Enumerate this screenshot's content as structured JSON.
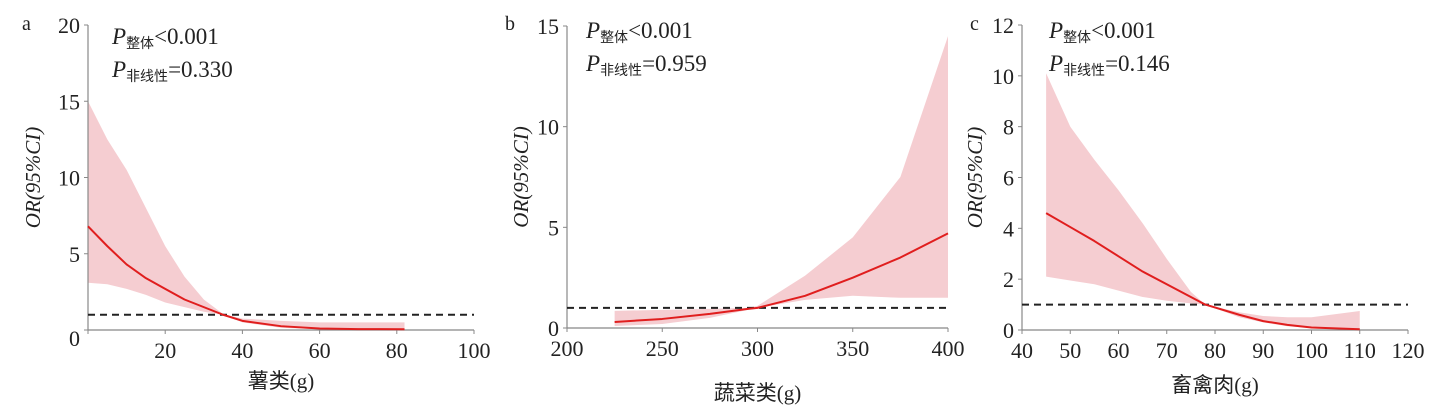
{
  "chart_data": [
    {
      "type": "line",
      "panel_label": "a",
      "xlabel": "薯类(g)",
      "ylabel": "OR(95%CI)",
      "xlim": [
        0,
        100
      ],
      "ylim": [
        0,
        20
      ],
      "xticks": [
        0,
        20,
        40,
        60,
        80,
        100
      ],
      "xtick_labels": [
        "",
        "20",
        "40",
        "60",
        "80",
        "100"
      ],
      "yticks": [
        0,
        5,
        10,
        15,
        20
      ],
      "ytick_labels": [
        "0",
        "5",
        "10",
        "15",
        "20"
      ],
      "reference_line": 1,
      "annotations": [
        {
          "p": "P",
          "sub": "整体",
          "value": "<0.001"
        },
        {
          "p": "P",
          "sub": "非线性",
          "value": "=0.330"
        }
      ],
      "x": [
        0,
        5,
        10,
        15,
        20,
        25,
        30,
        35,
        40,
        50,
        60,
        70,
        82
      ],
      "or": [
        6.8,
        5.5,
        4.3,
        3.4,
        2.7,
        2.0,
        1.5,
        1.0,
        0.6,
        0.25,
        0.1,
        0.06,
        0.05
      ],
      "upper": [
        15,
        12.5,
        10.5,
        8,
        5.5,
        3.5,
        2.0,
        1.05,
        0.75,
        0.6,
        0.5,
        0.5,
        0.5
      ],
      "lower": [
        3.1,
        3.0,
        2.7,
        2.3,
        1.8,
        1.5,
        1.2,
        1.0,
        0.5,
        0.15,
        0.05,
        0.02,
        0
      ]
    },
    {
      "type": "line",
      "panel_label": "b",
      "xlabel": "蔬菜类(g)",
      "ylabel": "OR(95%CI)",
      "xlim": [
        200,
        400
      ],
      "ylim": [
        0,
        15
      ],
      "xticks": [
        200,
        250,
        300,
        350,
        400
      ],
      "xtick_labels": [
        "200",
        "250",
        "300",
        "350",
        "400"
      ],
      "yticks": [
        0,
        5,
        10,
        15
      ],
      "ytick_labels": [
        "0",
        "5",
        "10",
        "15"
      ],
      "reference_line": 1,
      "annotations": [
        {
          "p": "P",
          "sub": "整体",
          "value": "<0.001"
        },
        {
          "p": "P",
          "sub": "非线性",
          "value": "=0.959"
        }
      ],
      "x": [
        225,
        250,
        275,
        295,
        300,
        325,
        350,
        375,
        400
      ],
      "or": [
        0.3,
        0.45,
        0.7,
        0.95,
        1.0,
        1.6,
        2.5,
        3.5,
        4.7
      ],
      "upper": [
        0.85,
        0.9,
        0.95,
        1.0,
        1.1,
        2.6,
        4.5,
        7.5,
        14.5
      ],
      "lower": [
        0.1,
        0.2,
        0.5,
        0.9,
        1.0,
        1.4,
        1.6,
        1.5,
        1.5
      ]
    },
    {
      "type": "line",
      "panel_label": "c",
      "xlabel": "畜禽肉(g)",
      "ylabel": "OR(95%CI)",
      "xlim": [
        40,
        120
      ],
      "ylim": [
        0,
        12
      ],
      "xticks": [
        40,
        50,
        60,
        70,
        80,
        90,
        100,
        110,
        120
      ],
      "xtick_labels": [
        "40",
        "50",
        "60",
        "70",
        "80",
        "90",
        "100",
        "110",
        "120"
      ],
      "yticks": [
        0,
        2,
        4,
        6,
        8,
        10,
        12
      ],
      "ytick_labels": [
        "0",
        "2",
        "4",
        "6",
        "8",
        "10",
        "12"
      ],
      "reference_line": 1,
      "annotations": [
        {
          "p": "P",
          "sub": "整体",
          "value": "<0.001"
        },
        {
          "p": "P",
          "sub": "非线性",
          "value": "=0.146"
        }
      ],
      "x": [
        45,
        50,
        55,
        60,
        65,
        70,
        75,
        78,
        85,
        90,
        95,
        100,
        110
      ],
      "or": [
        4.6,
        4.05,
        3.5,
        2.9,
        2.3,
        1.8,
        1.3,
        1.0,
        0.6,
        0.35,
        0.2,
        0.1,
        0.03
      ],
      "upper": [
        10.1,
        8.0,
        6.7,
        5.5,
        4.2,
        2.8,
        1.5,
        1.0,
        0.7,
        0.55,
        0.5,
        0.5,
        0.75
      ],
      "lower": [
        2.1,
        1.95,
        1.8,
        1.55,
        1.3,
        1.15,
        1.05,
        1.0,
        0.5,
        0.3,
        0.15,
        0.08,
        0
      ]
    }
  ],
  "colors": {
    "line": "#e01e1e",
    "band": "#f5cdd1",
    "ref": "#222222",
    "axis": "#888888"
  }
}
